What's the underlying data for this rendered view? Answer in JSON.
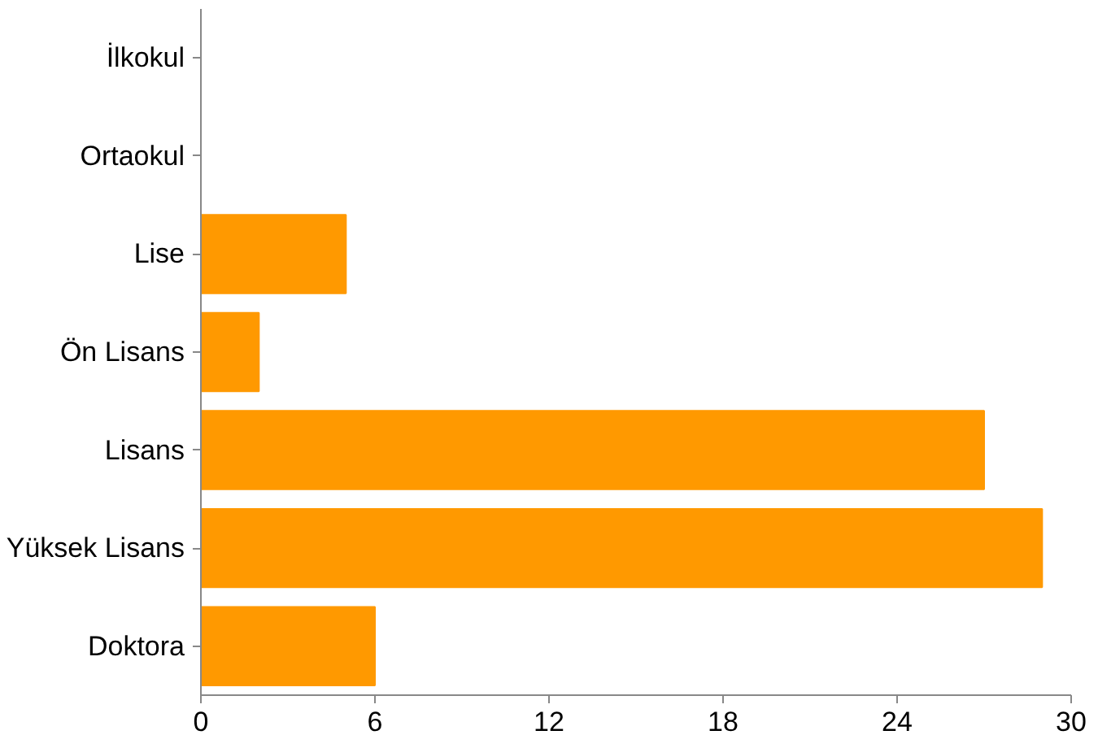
{
  "chart_data": {
    "type": "bar",
    "orientation": "horizontal",
    "categories": [
      "İlkokul",
      "Ortaokul",
      "Lise",
      "Ön Lisans",
      "Lisans",
      "Yüksek Lisans",
      "Doktora"
    ],
    "values": [
      0,
      0,
      5,
      2,
      27,
      29,
      6
    ],
    "color": "#ff9900",
    "xlim": [
      0,
      30
    ],
    "xticks": [
      0,
      6,
      12,
      18,
      24,
      30
    ]
  }
}
